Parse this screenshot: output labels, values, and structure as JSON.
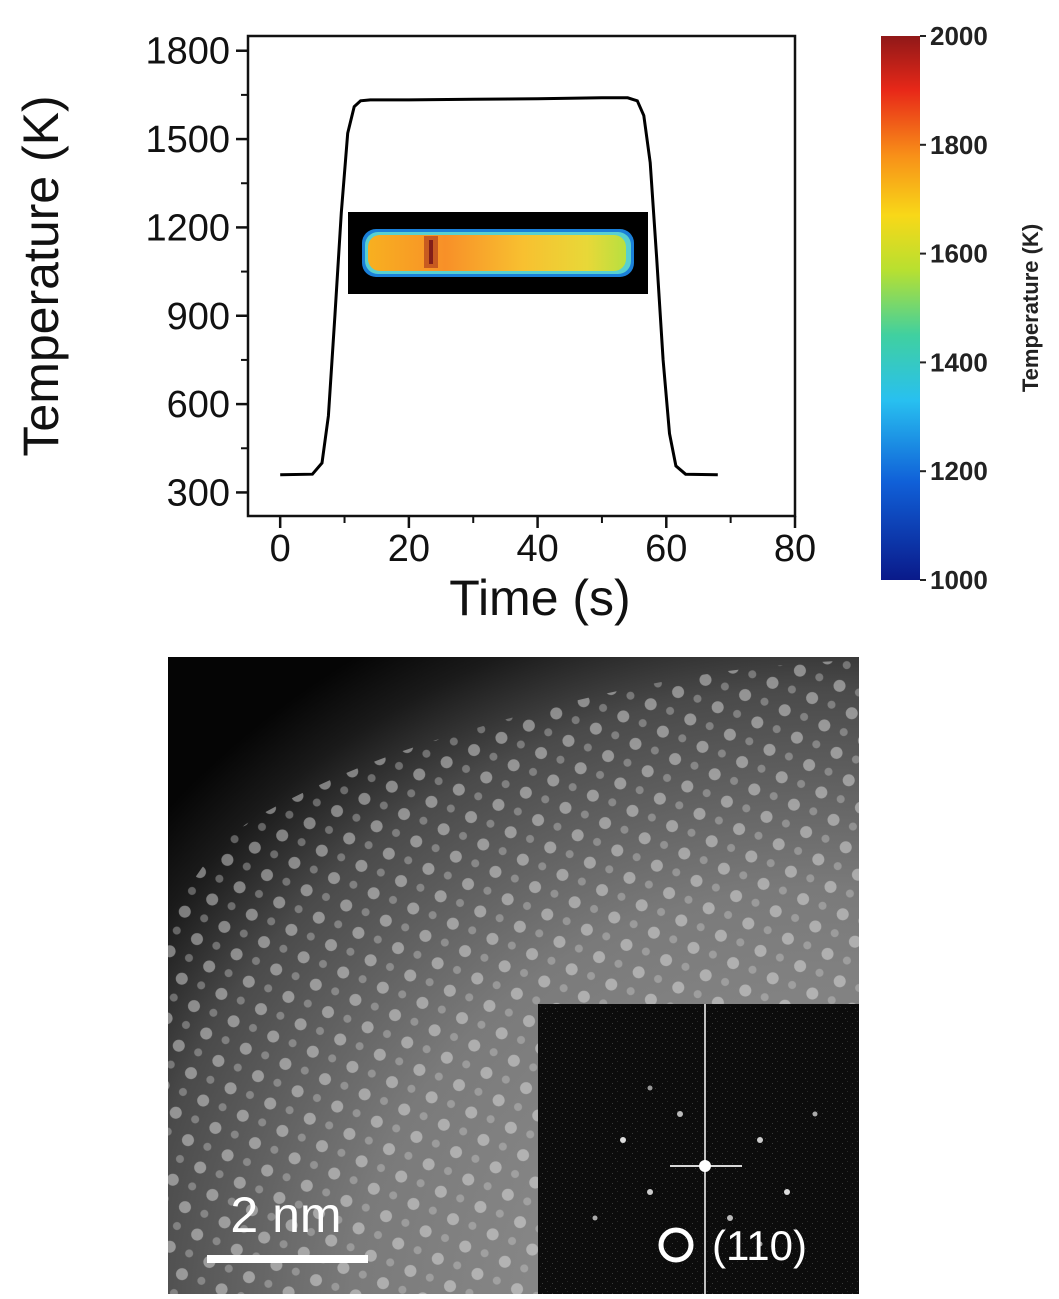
{
  "chart_data": {
    "type": "line",
    "xlabel": "Time (s)",
    "ylabel": "Temperature (K)",
    "xlim": [
      -5,
      80
    ],
    "ylim": [
      220,
      1850
    ],
    "xticks": [
      0,
      20,
      40,
      60,
      80
    ],
    "yticks": [
      300,
      600,
      900,
      1200,
      1500,
      1800
    ],
    "series": [
      {
        "x": [
          0,
          5,
          6.5,
          7.5,
          8.5,
          9.5,
          10.5,
          11.5,
          12.5,
          14,
          20,
          30,
          40,
          50,
          54,
          55.5,
          56.5,
          57.5,
          58.5,
          59.5,
          60.5,
          61.5,
          63,
          68
        ],
        "y": [
          360,
          362,
          400,
          560,
          900,
          1250,
          1520,
          1610,
          1630,
          1633,
          1633,
          1635,
          1637,
          1640,
          1640,
          1630,
          1580,
          1420,
          1100,
          750,
          500,
          390,
          362,
          360
        ]
      }
    ]
  },
  "colorbar": {
    "title": "Temperature (K)",
    "ticks": [
      "2000",
      "1800",
      "1600",
      "1400",
      "1200",
      "1000"
    ],
    "min": 1000,
    "max": 2000,
    "colors": [
      "#0a1a8a",
      "#1060d8",
      "#28c0f0",
      "#40d0a0",
      "#b8e030",
      "#f8d818",
      "#f89018",
      "#e82818",
      "#901818"
    ]
  },
  "micrograph": {
    "scale_bar_label": "2 nm",
    "fft_label": "(110)"
  }
}
